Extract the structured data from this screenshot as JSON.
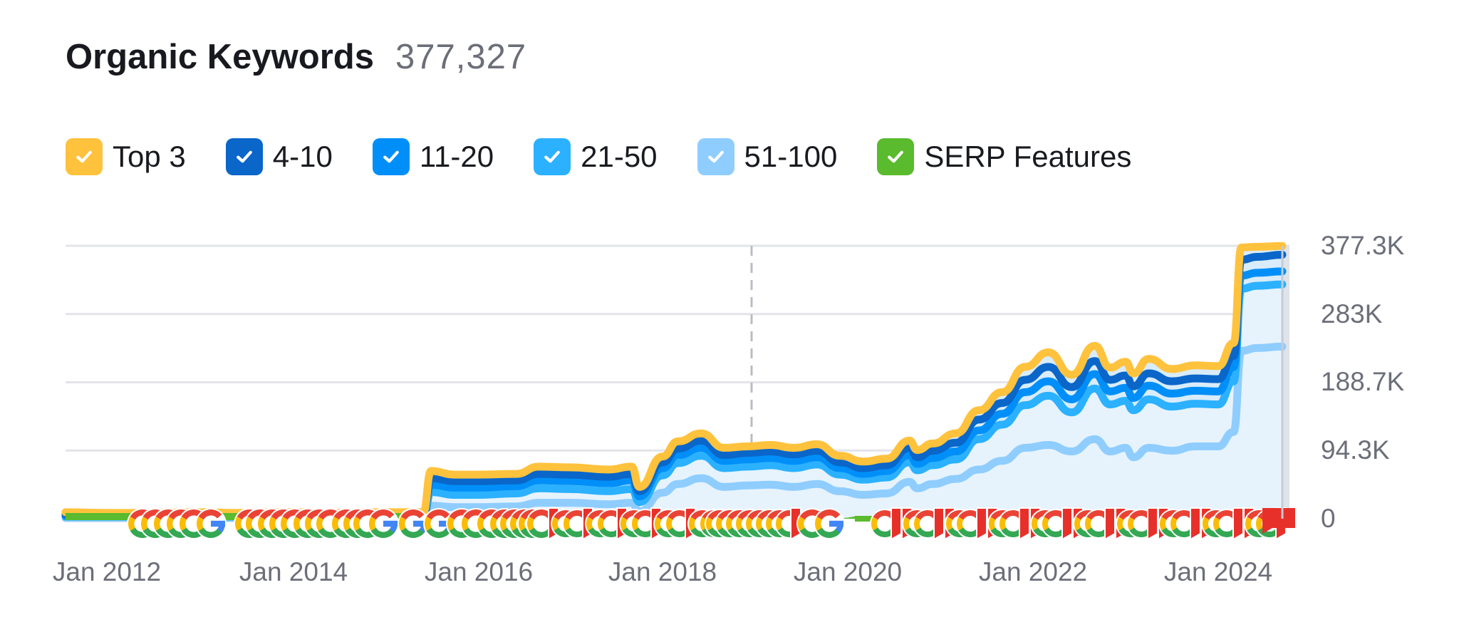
{
  "header": {
    "title": "Organic Keywords",
    "total": "377,327"
  },
  "legend": [
    {
      "label": "Top 3",
      "color": "#FFC23D",
      "checked": true
    },
    {
      "label": "4-10",
      "color": "#0A66C9",
      "checked": true
    },
    {
      "label": "11-20",
      "color": "#008FF8",
      "checked": true
    },
    {
      "label": "21-50",
      "color": "#2BB1FF",
      "checked": true
    },
    {
      "label": "51-100",
      "color": "#8FCDFF",
      "checked": true
    },
    {
      "label": "SERP Features",
      "color": "#59BB2D",
      "checked": true
    }
  ],
  "axes": {
    "y_ticks": [
      "377.3K",
      "283K",
      "188.7K",
      "94.3K",
      "0"
    ],
    "x_ticks": [
      "Jan 2012",
      "Jan 2014",
      "Jan 2016",
      "Jan 2018",
      "Jan 2020",
      "Jan 2022",
      "Jan 2024"
    ]
  },
  "colors": {
    "gridline": "#E3E4EA",
    "area_fill": "#E6F3FD",
    "area_fill_upper": "#D8ECFB",
    "annotation_red": "#E8302A",
    "google_red": "#EA4335",
    "google_yellow": "#FBBC05",
    "google_green": "#34A853",
    "google_blue": "#4285F4",
    "dashed_line": "#B9BCC5",
    "future_shade": "#DFE3EA"
  },
  "chart_data": {
    "type": "area",
    "title": "Organic Keywords",
    "subtitle": "377,327",
    "xlabel": "",
    "ylabel": "",
    "ylim": [
      0,
      377300
    ],
    "y_ticks": [
      0,
      94300,
      188700,
      283000,
      377300
    ],
    "x_tick_labels": [
      "Jan 2012",
      "Jan 2014",
      "Jan 2016",
      "Jan 2018",
      "Jan 2020",
      "Jan 2022",
      "Jan 2024"
    ],
    "grid": true,
    "legend_position": "top",
    "stacked": true,
    "x": [
      "2011-09",
      "2012-01",
      "2012-06",
      "2013-01",
      "2013-06",
      "2014-01",
      "2014-06",
      "2015-01",
      "2015-06",
      "2015-07",
      "2015-10",
      "2016-01",
      "2016-06",
      "2016-09",
      "2017-01",
      "2017-06",
      "2017-09",
      "2017-10",
      "2018-01",
      "2018-03",
      "2018-06",
      "2018-09",
      "2018-12",
      "2019-03",
      "2019-06",
      "2019-09",
      "2019-12",
      "2020-03",
      "2020-06",
      "2020-09",
      "2020-10",
      "2020-12",
      "2021-03",
      "2021-06",
      "2021-09",
      "2021-12",
      "2022-03",
      "2022-06",
      "2022-09",
      "2022-11",
      "2023-01",
      "2023-02",
      "2023-04",
      "2023-07",
      "2023-10",
      "2024-01",
      "2024-03",
      "2024-04",
      "2024-06",
      "2024-09"
    ],
    "series": [
      {
        "name": "Top 3",
        "values": [
          9,
          8,
          8,
          9,
          8,
          9,
          8,
          9,
          9,
          66,
          61,
          61,
          62,
          72,
          71,
          68,
          72,
          44,
          86,
          107,
          118,
          98,
          100,
          102,
          98,
          103,
          87,
          79,
          83,
          108,
          95,
          104,
          118,
          150,
          175,
          210,
          230,
          199,
          239,
          209,
          217,
          201,
          221,
          207,
          212,
          211,
          243,
          375,
          376,
          377
        ]
      },
      {
        "name": "4-10",
        "values": [
          6,
          6,
          6,
          6,
          6,
          6,
          6,
          6,
          6,
          56,
          52,
          52,
          53,
          62,
          61,
          58,
          62,
          38,
          78,
          97,
          108,
          88,
          91,
          93,
          89,
          94,
          78,
          70,
          74,
          98,
          85,
          94,
          105,
          137,
          160,
          192,
          210,
          182,
          218,
          192,
          198,
          183,
          201,
          190,
          194,
          193,
          225,
          358,
          362,
          365
        ]
      },
      {
        "name": "11-20",
        "values": [
          4,
          4,
          4,
          4,
          4,
          4,
          4,
          4,
          4,
          47,
          43,
          43,
          45,
          53,
          52,
          49,
          53,
          31,
          70,
          88,
          98,
          80,
          82,
          84,
          80,
          85,
          70,
          62,
          66,
          88,
          76,
          84,
          93,
          122,
          145,
          175,
          190,
          165,
          200,
          176,
          181,
          167,
          184,
          173,
          177,
          176,
          210,
          336,
          340,
          342
        ]
      },
      {
        "name": "21-50",
        "values": [
          3,
          3,
          3,
          3,
          3,
          3,
          3,
          3,
          3,
          37,
          33,
          33,
          35,
          42,
          41,
          38,
          41,
          23,
          60,
          77,
          87,
          70,
          72,
          74,
          70,
          75,
          61,
          54,
          57,
          78,
          67,
          74,
          82,
          110,
          130,
          157,
          170,
          147,
          180,
          158,
          163,
          150,
          165,
          155,
          159,
          158,
          190,
          318,
          322,
          324
        ]
      },
      {
        "name": "51-100",
        "values": [
          1,
          1,
          1,
          1,
          1,
          1,
          1,
          1,
          1,
          18,
          16,
          16,
          17,
          22,
          22,
          20,
          22,
          10,
          36,
          48,
          56,
          44,
          46,
          47,
          44,
          48,
          38,
          33,
          35,
          51,
          42,
          48,
          55,
          68,
          80,
          98,
          102,
          93,
          110,
          93,
          98,
          85,
          98,
          94,
          100,
          100,
          120,
          232,
          236,
          238
        ]
      },
      {
        "name": "SERP Features",
        "values": [
          6,
          6,
          6,
          6,
          6,
          6,
          6,
          6,
          6,
          0,
          0,
          0,
          0,
          0,
          0,
          0,
          0,
          0,
          0,
          0,
          0,
          0,
          0,
          0,
          0,
          0,
          1,
          4,
          0,
          0,
          0,
          0,
          0,
          0,
          0,
          2,
          3,
          4,
          4,
          5,
          5,
          4,
          4,
          3,
          8,
          10,
          6,
          4,
          3,
          3
        ]
      }
    ],
    "units": "thousands of keywords (approx.)",
    "annotations": {
      "dashed_vertical_line": "approx. 2018-09",
      "google_update_markers": "row of Google 'G' icons and red flags along baseline"
    }
  }
}
